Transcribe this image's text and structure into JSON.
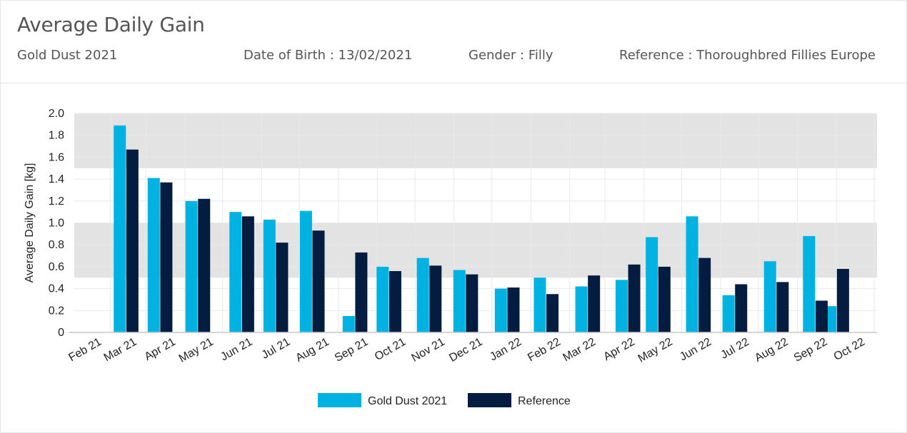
{
  "header": {
    "title": "Average Daily Gain",
    "horse_name": "Gold Dust 2021",
    "date_of_birth": "Date of Birth : 13/02/2021",
    "gender": "Gender : Filly",
    "reference": "Reference : Thoroughbred Fillies Europe"
  },
  "colors": {
    "series_gold_dust": "#00b2e2",
    "series_reference": "#031c40",
    "band": "#e3e3e3",
    "grid": "#e9e9e9"
  },
  "chart_data": {
    "type": "bar",
    "title": "",
    "xlabel": "",
    "ylabel": "Average Daily Gain [kg]",
    "ylim": [
      0,
      2.0
    ],
    "yticks": [
      0,
      0.2,
      0.4,
      0.6,
      0.8,
      1.0,
      1.2,
      1.4,
      1.6,
      1.8,
      2.0
    ],
    "ytick_labels": [
      "0",
      "0.2",
      "0.4",
      "0.6",
      "0.8",
      "1.0",
      "1.2",
      "1.4",
      "1.6",
      "1.8",
      "2.0"
    ],
    "categories": [
      "Feb 21",
      "Mar 21",
      "Apr 21",
      "May 21",
      "Jun 21",
      "Jul 21",
      "Aug 21",
      "Sep 21",
      "Oct 21",
      "Nov 21",
      "Dec 21",
      "Jan 22",
      "Feb 22",
      "Mar 22",
      "Apr 22",
      "May 22",
      "Jun 22",
      "Jul 22",
      "Aug 22",
      "Sep 22",
      "Oct 22"
    ],
    "category_dates": [
      "2021-02-13",
      "2021-03-13",
      "2021-04-13",
      "2021-05-13",
      "2021-06-13",
      "2021-07-13",
      "2021-08-13",
      "2021-09-13",
      "2021-10-13",
      "2021-11-13",
      "2021-12-13",
      "2022-01-13",
      "2022-02-13",
      "2022-03-13",
      "2022-04-13",
      "2022-05-13",
      "2022-06-13",
      "2022-07-13",
      "2022-08-13",
      "2022-09-13",
      "2022-10-13"
    ],
    "series": [
      {
        "name": "Gold Dust 2021",
        "points": [
          {
            "date": "2021-03-07",
            "value": 1.89
          },
          {
            "date": "2021-04-03",
            "value": 1.41
          },
          {
            "date": "2021-05-03",
            "value": 1.2
          },
          {
            "date": "2021-06-07",
            "value": 1.1
          },
          {
            "date": "2021-07-04",
            "value": 1.03
          },
          {
            "date": "2021-08-02",
            "value": 1.11
          },
          {
            "date": "2021-09-05",
            "value": 0.15
          },
          {
            "date": "2021-10-02",
            "value": 0.6
          },
          {
            "date": "2021-11-03",
            "value": 0.68
          },
          {
            "date": "2021-12-02",
            "value": 0.57
          },
          {
            "date": "2022-01-04",
            "value": 0.4
          },
          {
            "date": "2022-02-04",
            "value": 0.5
          },
          {
            "date": "2022-03-09",
            "value": 0.42
          },
          {
            "date": "2022-04-10",
            "value": 0.48
          },
          {
            "date": "2022-05-04",
            "value": 0.87
          },
          {
            "date": "2022-06-05",
            "value": 1.06
          },
          {
            "date": "2022-07-04",
            "value": 0.34
          },
          {
            "date": "2022-08-06",
            "value": 0.65
          },
          {
            "date": "2022-09-06",
            "value": 0.88
          },
          {
            "date": "2022-09-23",
            "value": 0.24
          }
        ]
      },
      {
        "name": "Reference",
        "points": [
          {
            "date": "2021-03-17",
            "value": 1.67
          },
          {
            "date": "2021-04-13",
            "value": 1.37
          },
          {
            "date": "2021-05-13",
            "value": 1.22
          },
          {
            "date": "2021-06-17",
            "value": 1.06
          },
          {
            "date": "2021-07-14",
            "value": 0.82
          },
          {
            "date": "2021-08-12",
            "value": 0.93
          },
          {
            "date": "2021-09-15",
            "value": 0.73
          },
          {
            "date": "2021-10-12",
            "value": 0.56
          },
          {
            "date": "2021-11-13",
            "value": 0.61
          },
          {
            "date": "2021-12-12",
            "value": 0.53
          },
          {
            "date": "2022-01-14",
            "value": 0.41
          },
          {
            "date": "2022-02-14",
            "value": 0.35
          },
          {
            "date": "2022-03-19",
            "value": 0.52
          },
          {
            "date": "2022-04-20",
            "value": 0.62
          },
          {
            "date": "2022-05-14",
            "value": 0.6
          },
          {
            "date": "2022-06-15",
            "value": 0.68
          },
          {
            "date": "2022-07-14",
            "value": 0.44
          },
          {
            "date": "2022-08-16",
            "value": 0.46
          },
          {
            "date": "2022-09-16",
            "value": 0.29
          },
          {
            "date": "2022-10-03",
            "value": 0.58
          }
        ]
      }
    ],
    "bands": [
      [
        0.5,
        1.0
      ],
      [
        1.5,
        2.0
      ]
    ],
    "grid": true,
    "legend": {
      "position": "bottom-center"
    }
  }
}
